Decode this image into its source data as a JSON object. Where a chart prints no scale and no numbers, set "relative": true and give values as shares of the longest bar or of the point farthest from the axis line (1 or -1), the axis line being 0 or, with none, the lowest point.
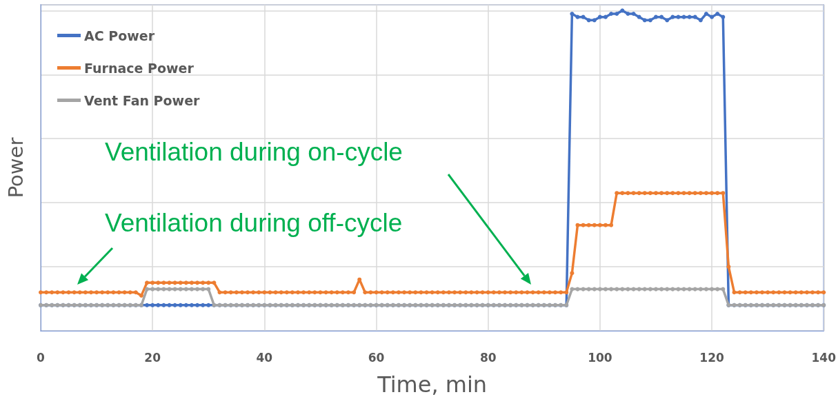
{
  "chart_data": {
    "type": "line",
    "relative": true,
    "xlabel": "Time, min",
    "ylabel": "Power",
    "xlim": [
      0,
      140
    ],
    "xticks": [
      0,
      20,
      40,
      60,
      80,
      100,
      120,
      140
    ],
    "grid": true,
    "legend": "top left",
    "marker": "circle",
    "line_style": "solid",
    "x": [
      0,
      1,
      2,
      3,
      4,
      5,
      6,
      7,
      8,
      9,
      10,
      11,
      12,
      13,
      14,
      15,
      16,
      17,
      18,
      19,
      20,
      21,
      22,
      23,
      24,
      25,
      26,
      27,
      28,
      29,
      30,
      31,
      32,
      33,
      34,
      35,
      36,
      37,
      38,
      39,
      40,
      41,
      42,
      43,
      44,
      45,
      46,
      47,
      48,
      49,
      50,
      51,
      52,
      53,
      54,
      55,
      56,
      57,
      58,
      59,
      60,
      61,
      62,
      63,
      64,
      65,
      66,
      67,
      68,
      69,
      70,
      71,
      72,
      73,
      74,
      75,
      76,
      77,
      78,
      79,
      80,
      81,
      82,
      83,
      84,
      85,
      86,
      87,
      88,
      89,
      90,
      91,
      92,
      93,
      94,
      95,
      96,
      97,
      98,
      99,
      100,
      101,
      102,
      103,
      104,
      105,
      106,
      107,
      108,
      109,
      110,
      111,
      112,
      113,
      114,
      115,
      116,
      117,
      118,
      119,
      120,
      121,
      122,
      123,
      124,
      125,
      126,
      127,
      128,
      129,
      130,
      131,
      132,
      133,
      134,
      135,
      136,
      137,
      138,
      139,
      140
    ],
    "series": [
      {
        "name": "AC Power",
        "color": "#4472c4",
        "values": [
          0.08,
          0.08,
          0.08,
          0.08,
          0.08,
          0.08,
          0.08,
          0.08,
          0.08,
          0.08,
          0.08,
          0.08,
          0.08,
          0.08,
          0.08,
          0.08,
          0.08,
          0.08,
          0.08,
          0.08,
          0.08,
          0.08,
          0.08,
          0.08,
          0.08,
          0.08,
          0.08,
          0.08,
          0.08,
          0.08,
          0.08,
          0.08,
          0.08,
          0.08,
          0.08,
          0.08,
          0.08,
          0.08,
          0.08,
          0.08,
          0.08,
          0.08,
          0.08,
          0.08,
          0.08,
          0.08,
          0.08,
          0.08,
          0.08,
          0.08,
          0.08,
          0.08,
          0.08,
          0.08,
          0.08,
          0.08,
          0.08,
          0.08,
          0.08,
          0.08,
          0.08,
          0.08,
          0.08,
          0.08,
          0.08,
          0.08,
          0.08,
          0.08,
          0.08,
          0.08,
          0.08,
          0.08,
          0.08,
          0.08,
          0.08,
          0.08,
          0.08,
          0.08,
          0.08,
          0.08,
          0.08,
          0.08,
          0.08,
          0.08,
          0.08,
          0.08,
          0.08,
          0.08,
          0.08,
          0.08,
          0.08,
          0.08,
          0.08,
          0.08,
          0.08,
          0.99,
          0.98,
          0.98,
          0.97,
          0.97,
          0.98,
          0.98,
          0.99,
          0.99,
          1,
          0.99,
          0.99,
          0.98,
          0.97,
          0.97,
          0.98,
          0.98,
          0.97,
          0.98,
          0.98,
          0.98,
          0.98,
          0.98,
          0.97,
          0.99,
          0.98,
          0.99,
          0.98,
          0.08,
          0.08,
          0.08,
          0.08,
          0.08,
          0.08,
          0.08,
          0.08,
          0.08,
          0.08,
          0.08,
          0.08,
          0.08,
          0.08,
          0.08,
          0.08,
          0.08,
          0.08
        ]
      },
      {
        "name": "Furnace Power",
        "color": "#ed7d31",
        "values": [
          0.12,
          0.12,
          0.12,
          0.12,
          0.12,
          0.12,
          0.12,
          0.12,
          0.12,
          0.12,
          0.12,
          0.12,
          0.12,
          0.12,
          0.12,
          0.12,
          0.12,
          0.12,
          0.11,
          0.15,
          0.15,
          0.15,
          0.15,
          0.15,
          0.15,
          0.15,
          0.15,
          0.15,
          0.15,
          0.15,
          0.15,
          0.15,
          0.12,
          0.12,
          0.12,
          0.12,
          0.12,
          0.12,
          0.12,
          0.12,
          0.12,
          0.12,
          0.12,
          0.12,
          0.12,
          0.12,
          0.12,
          0.12,
          0.12,
          0.12,
          0.12,
          0.12,
          0.12,
          0.12,
          0.12,
          0.12,
          0.12,
          0.16,
          0.12,
          0.12,
          0.12,
          0.12,
          0.12,
          0.12,
          0.12,
          0.12,
          0.12,
          0.12,
          0.12,
          0.12,
          0.12,
          0.12,
          0.12,
          0.12,
          0.12,
          0.12,
          0.12,
          0.12,
          0.12,
          0.12,
          0.12,
          0.12,
          0.12,
          0.12,
          0.12,
          0.12,
          0.12,
          0.12,
          0.12,
          0.12,
          0.12,
          0.12,
          0.12,
          0.12,
          0.12,
          0.18,
          0.33,
          0.33,
          0.33,
          0.33,
          0.33,
          0.33,
          0.33,
          0.43,
          0.43,
          0.43,
          0.43,
          0.43,
          0.43,
          0.43,
          0.43,
          0.43,
          0.43,
          0.43,
          0.43,
          0.43,
          0.43,
          0.43,
          0.43,
          0.43,
          0.43,
          0.43,
          0.43,
          0.2,
          0.12,
          0.12,
          0.12,
          0.12,
          0.12,
          0.12,
          0.12,
          0.12,
          0.12,
          0.12,
          0.12,
          0.12,
          0.12,
          0.12,
          0.12,
          0.12,
          0.12
        ]
      },
      {
        "name": "Vent Fan Power",
        "color": "#a5a5a5",
        "values": [
          0.08,
          0.08,
          0.08,
          0.08,
          0.08,
          0.08,
          0.08,
          0.08,
          0.08,
          0.08,
          0.08,
          0.08,
          0.08,
          0.08,
          0.08,
          0.08,
          0.08,
          0.08,
          0.08,
          0.13,
          0.13,
          0.13,
          0.13,
          0.13,
          0.13,
          0.13,
          0.13,
          0.13,
          0.13,
          0.13,
          0.13,
          0.08,
          0.08,
          0.08,
          0.08,
          0.08,
          0.08,
          0.08,
          0.08,
          0.08,
          0.08,
          0.08,
          0.08,
          0.08,
          0.08,
          0.08,
          0.08,
          0.08,
          0.08,
          0.08,
          0.08,
          0.08,
          0.08,
          0.08,
          0.08,
          0.08,
          0.08,
          0.08,
          0.08,
          0.08,
          0.08,
          0.08,
          0.08,
          0.08,
          0.08,
          0.08,
          0.08,
          0.08,
          0.08,
          0.08,
          0.08,
          0.08,
          0.08,
          0.08,
          0.08,
          0.08,
          0.08,
          0.08,
          0.08,
          0.08,
          0.08,
          0.08,
          0.08,
          0.08,
          0.08,
          0.08,
          0.08,
          0.08,
          0.08,
          0.08,
          0.08,
          0.08,
          0.08,
          0.08,
          0.08,
          0.13,
          0.13,
          0.13,
          0.13,
          0.13,
          0.13,
          0.13,
          0.13,
          0.13,
          0.13,
          0.13,
          0.13,
          0.13,
          0.13,
          0.13,
          0.13,
          0.13,
          0.13,
          0.13,
          0.13,
          0.13,
          0.13,
          0.13,
          0.13,
          0.13,
          0.13,
          0.13,
          0.13,
          0.08,
          0.08,
          0.08,
          0.08,
          0.08,
          0.08,
          0.08,
          0.08,
          0.08,
          0.08,
          0.08,
          0.08,
          0.08,
          0.08,
          0.08,
          0.08,
          0.08,
          0.08
        ]
      }
    ],
    "annotations": [
      "Ventilation during on-cycle",
      "Ventilation during off-cycle"
    ]
  }
}
